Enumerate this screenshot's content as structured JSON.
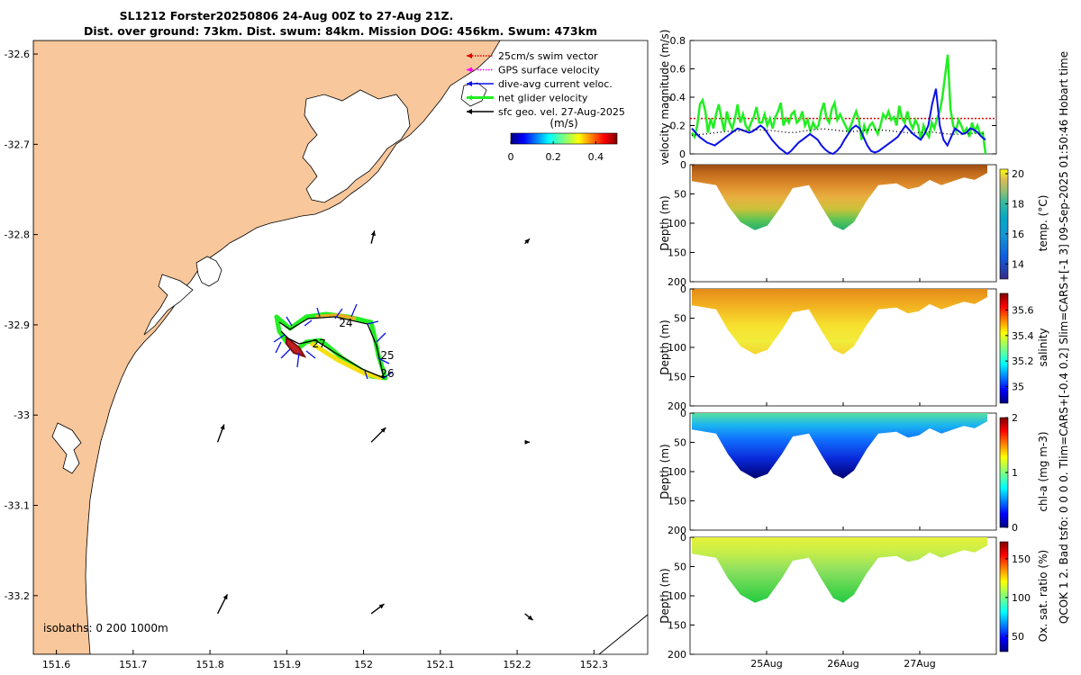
{
  "title": {
    "line1": "SL1212 Forster20250806 24-Aug 00Z to 27-Aug 21Z.",
    "line2": "Dist. over ground: 73km. Dist. swum: 84km. Mission DOG: 456km. Swum: 473km"
  },
  "side_text": "QCOK 1  2. Bad tsfo: 0  0  0  0. Tlim=CARS+[-0.4 0.2] Slim=CARS+[-1 3] 09-Sep-2025 01:50:46 Hobart time",
  "colors": {
    "land": "#f8c79b",
    "sea": "#ffffff",
    "red": "#e00000",
    "magenta": "#ff00ff",
    "blue": "#0a10e8",
    "green": "#22ee22",
    "black": "#000000"
  },
  "map": {
    "xlim": [
      151.57,
      152.37
    ],
    "ylim": [
      -33.265,
      -32.585
    ],
    "xticks": [
      "151.6",
      "151.7",
      "151.8",
      "151.9",
      "152",
      "152.1",
      "152.2",
      "152.3"
    ],
    "yticks": [
      "-32.6",
      "-32.7",
      "-32.8",
      "-32.9",
      "-33",
      "-33.1",
      "-33.2"
    ],
    "isobaths_label": "isobaths: 0   200  1000m",
    "legend": [
      {
        "label": "25cm/s swim vector",
        "color": "#e00000",
        "style": "dotted"
      },
      {
        "label": "GPS surface velocity",
        "color": "#ff00ff",
        "style": "dotted"
      },
      {
        "label": "dive-avg current veloc.",
        "color": "#0a10e8",
        "style": "solid"
      },
      {
        "label": "net glider velocity",
        "color": "#22ee22",
        "style": "thick"
      },
      {
        "label": "sfc geo. vel. 27-Aug-2025",
        "color": "#000000",
        "style": "solid"
      }
    ],
    "colorbar": {
      "label": "(m/s)",
      "ticks": [
        "0",
        "0.2",
        "0.4"
      ]
    },
    "day_labels": [
      {
        "text": "24",
        "lon": 151.968,
        "lat": -32.902
      },
      {
        "text": "25",
        "lon": 152.022,
        "lat": -32.938
      },
      {
        "text": "26",
        "lon": 152.022,
        "lat": -32.958
      },
      {
        "text": "27",
        "lon": 151.933,
        "lat": -32.925
      }
    ],
    "geo_vectors": [
      {
        "lon": 152.01,
        "lat": -32.81,
        "u": 0.02,
        "v": 0.08
      },
      {
        "lon": 152.21,
        "lat": -32.81,
        "u": 0.03,
        "v": 0.03
      },
      {
        "lon": 151.81,
        "lat": -33.03,
        "u": 0.04,
        "v": 0.11
      },
      {
        "lon": 152.01,
        "lat": -33.03,
        "u": 0.09,
        "v": 0.09
      },
      {
        "lon": 152.21,
        "lat": -33.03,
        "u": 0.03,
        "v": 0.0
      },
      {
        "lon": 151.81,
        "lat": -33.22,
        "u": 0.06,
        "v": 0.12
      },
      {
        "lon": 152.01,
        "lat": -33.22,
        "u": 0.08,
        "v": 0.06
      },
      {
        "lon": 152.21,
        "lat": -33.22,
        "u": 0.05,
        "v": -0.04
      }
    ]
  },
  "velocity_panel": {
    "ylabel": "velocity magnitude (m/s)",
    "ylim": [
      0,
      0.8
    ],
    "yticks": [
      "0",
      "0.2",
      "0.4",
      "0.6",
      "0.8"
    ],
    "t_range": [
      0,
      4
    ],
    "swim_vector": 0.25,
    "green": [
      0.15,
      0.12,
      0.2,
      0.35,
      0.38,
      0.3,
      0.15,
      0.25,
      0.18,
      0.28,
      0.35,
      0.25,
      0.16,
      0.3,
      0.22,
      0.18,
      0.25,
      0.35,
      0.22,
      0.28,
      0.2,
      0.17,
      0.22,
      0.26,
      0.33,
      0.22,
      0.22,
      0.28,
      0.2,
      0.25,
      0.18,
      0.26,
      0.3,
      0.36,
      0.2,
      0.25,
      0.22,
      0.28,
      0.3,
      0.22,
      0.24,
      0.3,
      0.2,
      0.24,
      0.16,
      0.22,
      0.18,
      0.2,
      0.3,
      0.36,
      0.25,
      0.22,
      0.32,
      0.36,
      0.24,
      0.28,
      0.24,
      0.2,
      0.16,
      0.2,
      0.25,
      0.3,
      0.24,
      0.1,
      0.2,
      0.15,
      0.2,
      0.22,
      0.18,
      0.14,
      0.2,
      0.28,
      0.25,
      0.3,
      0.24,
      0.26,
      0.2,
      0.34,
      0.25,
      0.22,
      0.3,
      0.22,
      0.18,
      0.24,
      0.2,
      0.1,
      0.2,
      0.15,
      0.12,
      0.22,
      0.18,
      0.25,
      0.3,
      0.4,
      0.55,
      0.7,
      0.32,
      0.2,
      0.16,
      0.24,
      0.2,
      0.15,
      0.18,
      0.12,
      0.22,
      0.16,
      0.2,
      0.14,
      0.15,
      0.0
    ],
    "blue": [
      0.18,
      0.15,
      0.12,
      0.1,
      0.08,
      0.07,
      0.06,
      0.08,
      0.1,
      0.12,
      0.14,
      0.16,
      0.18,
      0.17,
      0.16,
      0.15,
      0.16,
      0.18,
      0.2,
      0.18,
      0.14,
      0.1,
      0.07,
      0.04,
      0.02,
      0.0,
      0.02,
      0.05,
      0.08,
      0.1,
      0.12,
      0.14,
      0.12,
      0.1,
      0.06,
      0.03,
      0.01,
      0.0,
      0.02,
      0.05,
      0.1,
      0.14,
      0.18,
      0.2,
      0.18,
      0.12,
      0.06,
      0.02,
      0.01,
      0.02,
      0.04,
      0.06,
      0.08,
      0.1,
      0.12,
      0.16,
      0.2,
      0.17,
      0.14,
      0.12,
      0.1,
      0.14,
      0.2,
      0.35,
      0.46,
      0.2,
      0.1,
      0.06,
      0.12,
      0.18,
      0.16,
      0.14,
      0.15,
      0.18,
      0.17,
      0.15,
      0.12,
      0.1
    ],
    "black": [
      0.13,
      0.135,
      0.14,
      0.145,
      0.15,
      0.155,
      0.16,
      0.16,
      0.165,
      0.165,
      0.17,
      0.17,
      0.168,
      0.165,
      0.16,
      0.155,
      0.15,
      0.152,
      0.16,
      0.165,
      0.17,
      0.175,
      0.175,
      0.17,
      0.165,
      0.16,
      0.158,
      0.16,
      0.165,
      0.17,
      0.17,
      0.168,
      0.165,
      0.16,
      0.155,
      0.15,
      0.148,
      0.15,
      0.152,
      0.155,
      0.15,
      0.145,
      0.14,
      0.138,
      0.14,
      0.143,
      0.145,
      0.145,
      0.14
    ]
  },
  "sections": [
    {
      "id": "temp",
      "label": "temp. (°C)",
      "clim": [
        13,
        20.3
      ],
      "cticks": [
        "14",
        "16",
        "18",
        "20"
      ],
      "cvals": [
        14,
        16,
        18,
        20
      ],
      "colormap": "parula"
    },
    {
      "id": "sal",
      "label": "salinity",
      "clim": [
        34.87,
        35.73
      ],
      "cticks": [
        "35",
        "35.2",
        "35.4",
        "35.6"
      ],
      "cvals": [
        35,
        35.2,
        35.4,
        35.6
      ],
      "colormap": "jet"
    },
    {
      "id": "chl",
      "label": "chl-a (mg m-3)",
      "clim": [
        0,
        2
      ],
      "cticks": [
        "0",
        "1",
        "2"
      ],
      "cvals": [
        0,
        1,
        2
      ],
      "colormap": "jet"
    },
    {
      "id": "oxy",
      "label": "Ox. sat. ratio (%)",
      "clim": [
        30,
        172
      ],
      "cticks": [
        "50",
        "100",
        "150"
      ],
      "cvals": [
        50,
        100,
        150
      ],
      "colormap": "jet"
    }
  ],
  "section_axes": {
    "ylabel": "Depth (m)",
    "yticks": [
      "0",
      "50",
      "100",
      "150",
      "200"
    ],
    "ylim": [
      0,
      200
    ],
    "t_range": [
      0,
      4
    ],
    "xticks": [
      {
        "t": 1,
        "label": "25Aug"
      },
      {
        "t": 2,
        "label": "26Aug"
      },
      {
        "t": 3,
        "label": "27Aug"
      }
    ]
  }
}
